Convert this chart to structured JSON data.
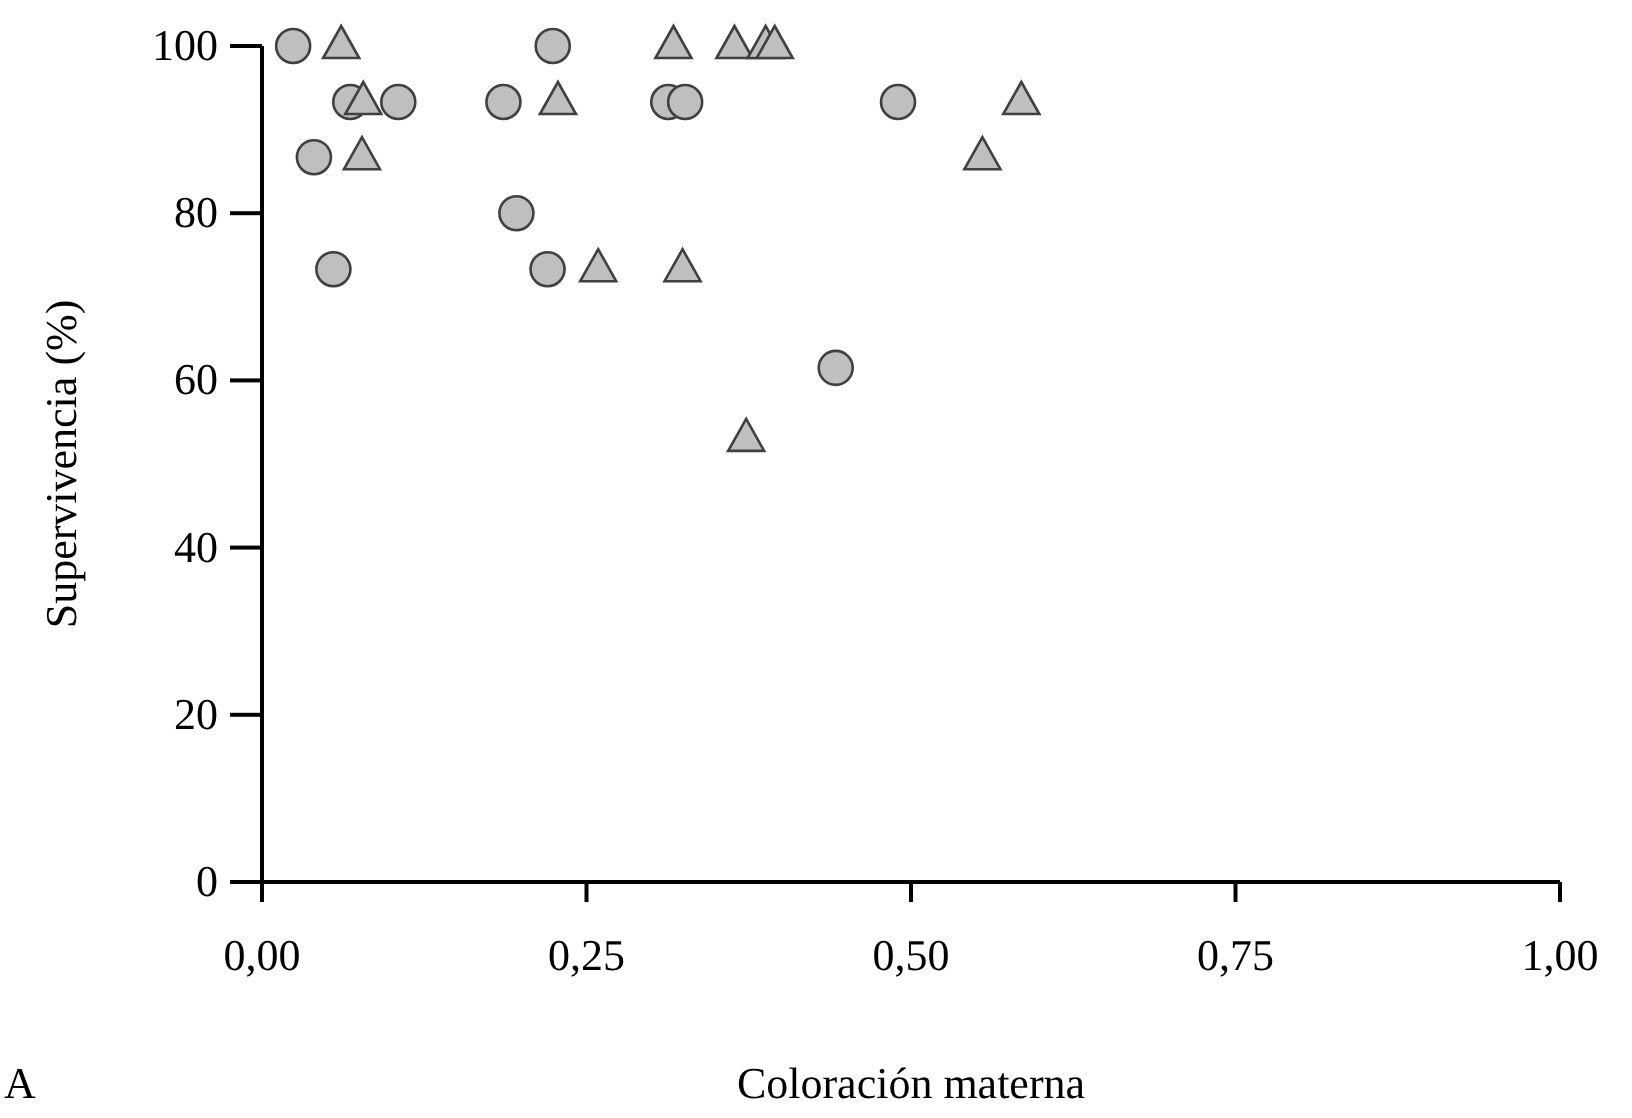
{
  "chart_data": {
    "type": "scatter",
    "xlabel": "Coloración materna",
    "ylabel": "Supervivencia (%)",
    "annotations": [
      "A"
    ],
    "xlim": [
      0,
      1
    ],
    "ylim": [
      0,
      100
    ],
    "xticks": [
      {
        "value": 0,
        "label": "0,00"
      },
      {
        "value": 0.25,
        "label": "0,25"
      },
      {
        "value": 0.5,
        "label": "0,50"
      },
      {
        "value": 0.75,
        "label": "0,75"
      },
      {
        "value": 1,
        "label": "1,00"
      }
    ],
    "yticks": [
      0,
      20,
      40,
      60,
      80,
      100
    ],
    "grid": false,
    "series": [
      {
        "color": "#bfbfbf",
        "marker": "circle",
        "x": [
          0.024,
          0.068,
          0.105,
          0.04,
          0.055,
          0.224,
          0.186,
          0.196,
          0.22,
          0.313,
          0.326,
          0.49,
          0.442
        ],
        "values": [
          100,
          93.3,
          93.3,
          86.7,
          73.3,
          100,
          93.3,
          80,
          73.3,
          93.3,
          93.3,
          93.3,
          61.5
        ]
      },
      {
        "color": "#bfbfbf",
        "marker": "triangle",
        "x": [
          0.061,
          0.078,
          0.077,
          0.228,
          0.259,
          0.317,
          0.364,
          0.388,
          0.395,
          0.585,
          0.555,
          0.324,
          0.373
        ],
        "values": [
          100,
          93.3,
          86.7,
          93.3,
          73.3,
          100,
          100,
          100,
          100,
          93.3,
          86.7,
          73.3,
          53
        ]
      }
    ]
  }
}
